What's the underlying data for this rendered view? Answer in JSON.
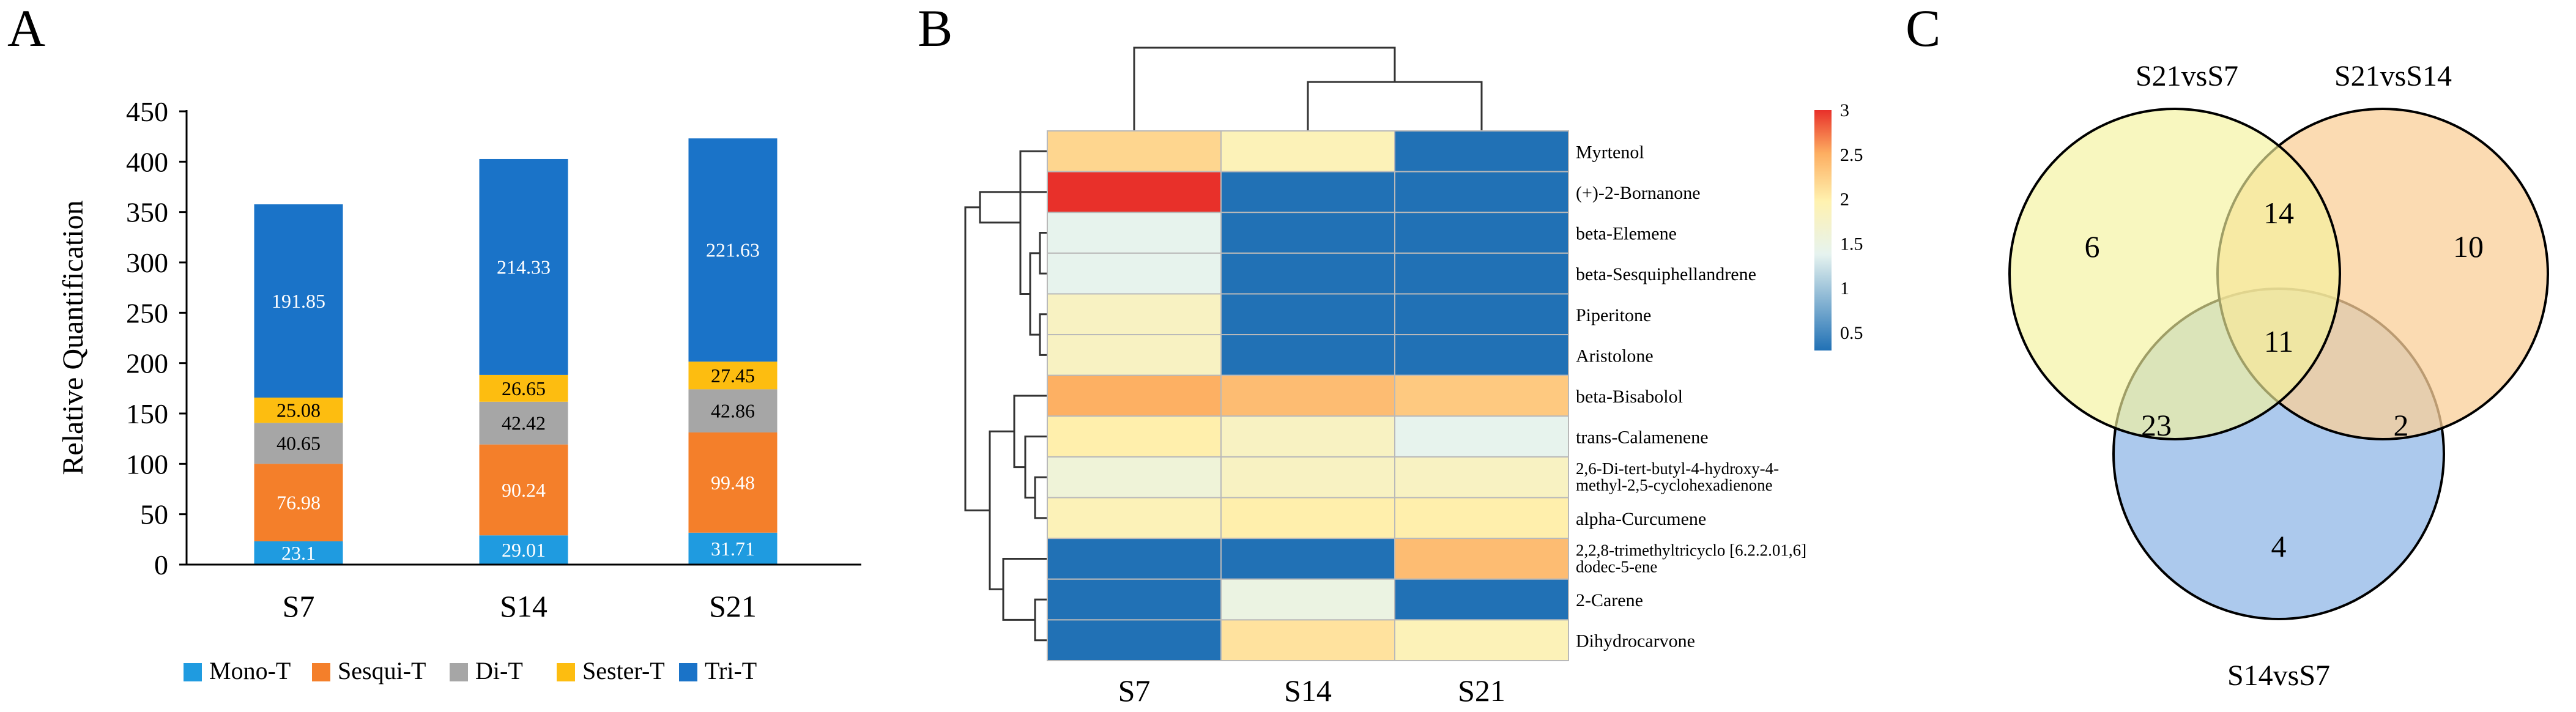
{
  "panels": {
    "a": "A",
    "b": "B",
    "c": "C"
  },
  "colors": {
    "mono": "#1f9be0",
    "sesqui": "#f47f2a",
    "di": "#a6a6a6",
    "sester": "#fdbd10",
    "tri": "#1a73c8",
    "heat_low": "#2171b5",
    "heat_mid_low": "#e6f3ef",
    "heat_mid": "#fff2b0",
    "heat_mid_high": "#fdae61",
    "heat_high": "#e8302a",
    "venn_a": "#f5f29c",
    "venn_b": "#f9cf98",
    "venn_c": "#9ec0ea"
  },
  "chart_data": [
    {
      "id": "A",
      "type": "bar",
      "stacked": true,
      "categories": [
        "S7",
        "S14",
        "S21"
      ],
      "series": [
        {
          "name": "Mono-T",
          "values": [
            23.1,
            29.01,
            31.71
          ]
        },
        {
          "name": "Sesqui-T",
          "values": [
            76.98,
            90.24,
            99.48
          ]
        },
        {
          "name": "Di-T",
          "values": [
            40.65,
            42.42,
            42.86
          ]
        },
        {
          "name": "Sester-T",
          "values": [
            25.08,
            26.65,
            27.45
          ]
        },
        {
          "name": "Tri-T",
          "values": [
            191.85,
            214.33,
            221.63
          ]
        }
      ],
      "ylabel": "Relative Quantification",
      "xlabel": "",
      "ylim": [
        0,
        450
      ],
      "yticks": [
        0,
        50,
        100,
        150,
        200,
        250,
        300,
        350,
        400,
        450
      ],
      "legend": "bottom",
      "grid": false
    },
    {
      "id": "B",
      "type": "heatmap",
      "columns": [
        "S7",
        "S14",
        "S21"
      ],
      "rows": [
        "Myrtenol",
        "(+)-2-Bornanone",
        "beta-Elemene",
        "beta-Sesquiphellandrene",
        "Piperitone",
        "Aristolone",
        "beta-Bisabolol",
        "trans-Calamenene",
        "2,6-Di-tert-butyl-4-hydroxy-4-methyl-2,5-cyclohexadienone",
        "alpha-Curcumene",
        "2,2,8-trimethyltricyclo [6.2.2.01,6] dodec-5-ene",
        "2-Carene",
        "Dihydrocarvone"
      ],
      "row_label_lines": [
        [
          "Myrtenol"
        ],
        [
          "(+)-2-Bornanone"
        ],
        [
          "beta-Elemene"
        ],
        [
          "beta-Sesquiphellandrene"
        ],
        [
          "Piperitone"
        ],
        [
          "Aristolone"
        ],
        [
          "beta-Bisabolol"
        ],
        [
          "trans-Calamenene"
        ],
        [
          "2,6-Di-tert-butyl-4-hydroxy-4-",
          "methyl-2,5-cyclohexadienone"
        ],
        [
          "alpha-Curcumene"
        ],
        [
          "2,2,8-trimethyltricyclo [6.2.2.01,6]",
          "dodec-5-ene"
        ],
        [
          "2-Carene"
        ],
        [
          "Dihydrocarvone"
        ]
      ],
      "values": [
        [
          2.2,
          1.9,
          0.3
        ],
        [
          3.0,
          0.3,
          0.3
        ],
        [
          1.4,
          0.3,
          0.3
        ],
        [
          1.4,
          0.3,
          0.3
        ],
        [
          1.8,
          0.3,
          0.3
        ],
        [
          1.8,
          0.3,
          0.3
        ],
        [
          2.5,
          2.4,
          2.3
        ],
        [
          2.0,
          1.8,
          1.4
        ],
        [
          1.6,
          1.8,
          1.8
        ],
        [
          1.9,
          2.0,
          2.0
        ],
        [
          0.3,
          0.3,
          2.4
        ],
        [
          0.3,
          1.5,
          0.3
        ],
        [
          0.3,
          2.1,
          1.9
        ]
      ],
      "colorbar": {
        "min": 0.3,
        "max": 3.0,
        "ticks": [
          "3",
          "2.5",
          "2",
          "1.5",
          "1",
          "0.5"
        ],
        "tick_values": [
          3,
          2.5,
          2,
          1.5,
          1,
          0.5
        ]
      },
      "column_dendrogram": "S7 | (S14, S21)",
      "row_dendrogram": "clustered"
    },
    {
      "id": "C",
      "type": "venn",
      "sets": [
        "S21vsS7",
        "S21vsS14",
        "S14vsS7"
      ],
      "regions": {
        "only_S21vsS7": 6,
        "only_S21vsS14": 10,
        "only_S14vsS7": 4,
        "S21vsS7_and_S21vsS14": 14,
        "S21vsS7_and_S14vsS7": 23,
        "S21vsS14_and_S14vsS7": 2,
        "all_three": 11
      }
    }
  ]
}
